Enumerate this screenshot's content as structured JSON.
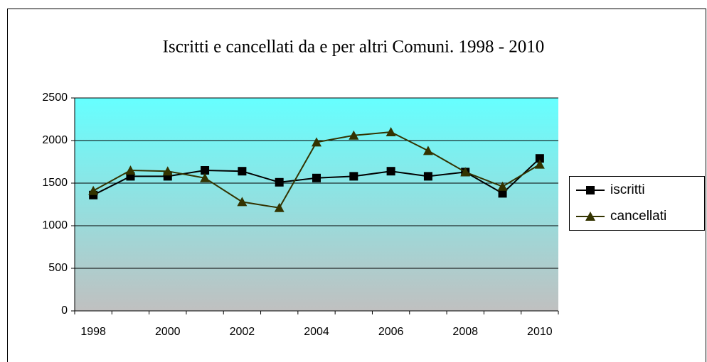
{
  "chart_data": {
    "type": "line",
    "title": "Iscritti e cancellati da e per altri Comuni. 1998 - 2010",
    "categories": [
      "1998",
      null,
      "2000",
      null,
      "2002",
      null,
      "2004",
      null,
      "2006",
      null,
      "2008",
      null,
      "2010"
    ],
    "series": [
      {
        "name": "iscritti",
        "color": "#000000",
        "marker": "square",
        "values": [
          1360,
          1580,
          1580,
          1650,
          1640,
          1510,
          1560,
          1580,
          1640,
          1580,
          1630,
          1380,
          1790
        ]
      },
      {
        "name": "cancellati",
        "color": "#333300",
        "marker": "triangle",
        "values": [
          1410,
          1650,
          1640,
          1560,
          1280,
          1210,
          1980,
          2060,
          2100,
          1880,
          1630,
          1460,
          1720
        ]
      }
    ],
    "ylim": [
      0,
      2500
    ],
    "yticks": [
      0,
      500,
      1000,
      1500,
      2000,
      2500
    ],
    "grid": true,
    "legend": "right"
  }
}
